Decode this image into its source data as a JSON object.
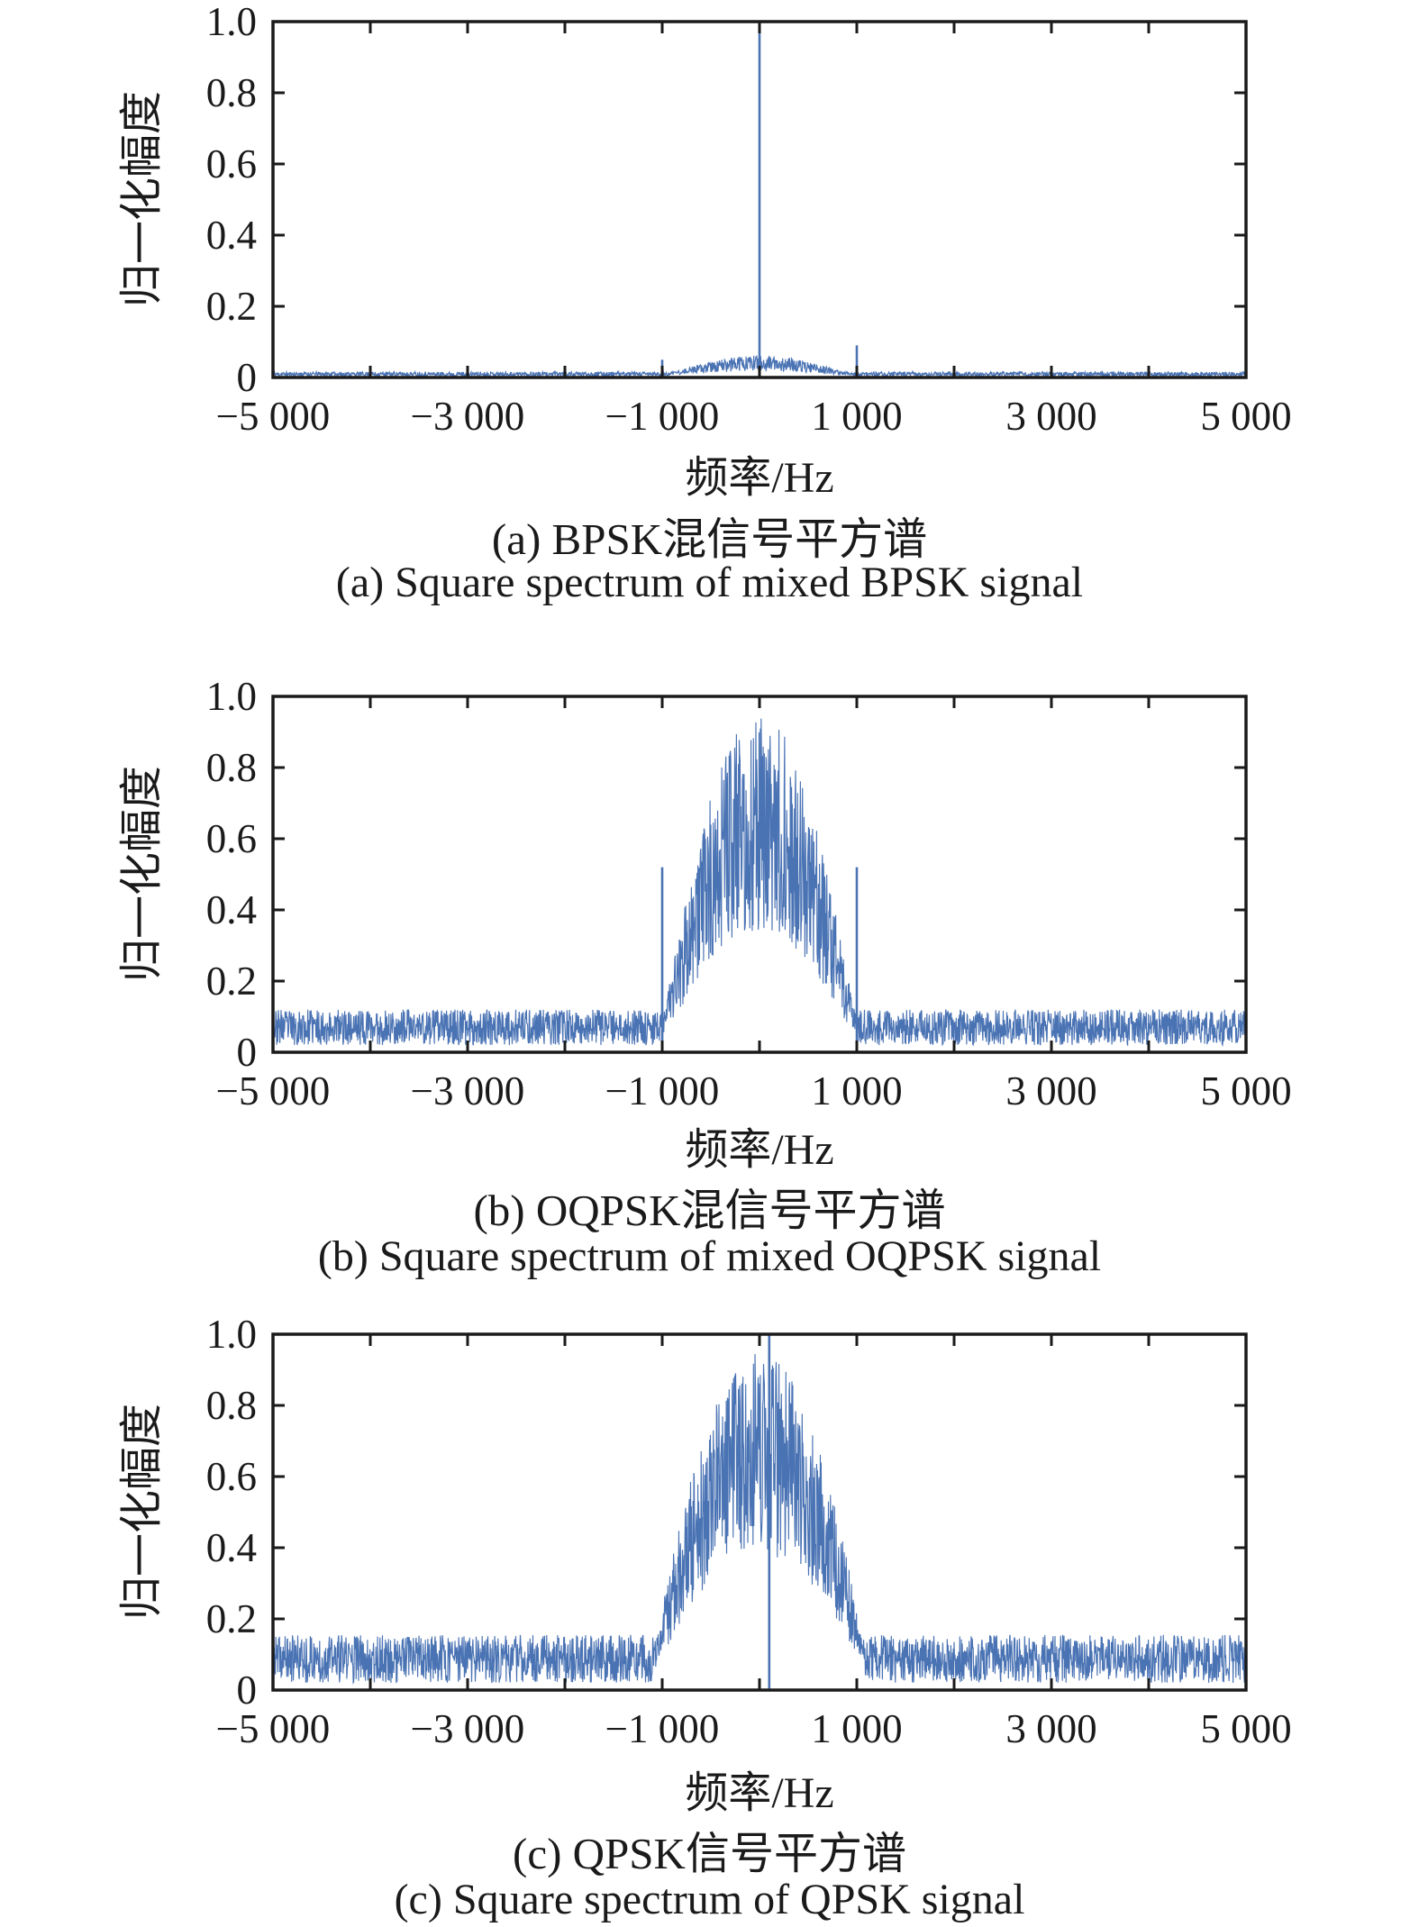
{
  "chart_data": [
    {
      "id": "a",
      "type": "line",
      "title_zh": "(a) BPSK混信号平方谱",
      "title_en": "(a) Square spectrum of mixed BPSK signal",
      "xlabel": "频率/Hz",
      "ylabel": "归一化幅度",
      "xlim": [
        -5000,
        5000
      ],
      "ylim": [
        0,
        1.0
      ],
      "x_major_ticks": [
        -5000,
        -3000,
        -1000,
        1000,
        3000,
        5000
      ],
      "x_tick_labels": [
        "−5 000",
        "−3 000",
        "−1 000",
        "1 000",
        "3 000",
        "5 000"
      ],
      "x_minor_ticks": [
        -4000,
        -2000,
        0,
        2000,
        4000
      ],
      "y_ticks": [
        0,
        0.2,
        0.4,
        0.6,
        0.8,
        1.0
      ],
      "y_tick_labels": [
        "0",
        "0.2",
        "0.4",
        "0.6",
        "0.8",
        "1.0"
      ],
      "grid": false,
      "legend": "none",
      "line_color": "#4a73b4",
      "axis_color": "#1a1a1a",
      "points": 2400,
      "seed": 11,
      "noise_floor": {
        "base": 0.003,
        "amplitude": 0.013
      },
      "main_lobe": {
        "from": -1100,
        "to": 1100,
        "peak": 0.062,
        "exponent": 1.2,
        "min_frac": 0.3,
        "max_frac": 1.0
      },
      "spikes": [
        {
          "x": 0,
          "y": 1.0
        },
        {
          "x": -1000,
          "y": 0.05
        },
        {
          "x": 1000,
          "y": 0.09
        }
      ]
    },
    {
      "id": "b",
      "type": "line",
      "title_zh": "(b) OQPSK混信号平方谱",
      "title_en": "(b) Square spectrum of mixed OQPSK signal",
      "xlabel": "频率/Hz",
      "ylabel": "归一化幅度",
      "xlim": [
        -5000,
        5000
      ],
      "ylim": [
        0,
        1.0
      ],
      "x_major_ticks": [
        -5000,
        -3000,
        -1000,
        1000,
        3000,
        5000
      ],
      "x_tick_labels": [
        "−5 000",
        "−3 000",
        "−1 000",
        "1 000",
        "3 000",
        "5 000"
      ],
      "x_minor_ticks": [
        -4000,
        -2000,
        0,
        2000,
        4000
      ],
      "y_ticks": [
        0,
        0.2,
        0.4,
        0.6,
        0.8,
        1.0
      ],
      "y_tick_labels": [
        "0",
        "0.2",
        "0.4",
        "0.6",
        "0.8",
        "1.0"
      ],
      "grid": false,
      "legend": "none",
      "line_color": "#4a73b4",
      "axis_color": "#1a1a1a",
      "points": 2400,
      "seed": 23,
      "noise_floor": {
        "base": 0.02,
        "amplitude": 0.1
      },
      "main_lobe": {
        "from": -1060,
        "to": 1060,
        "peak": 0.97,
        "exponent": 1.0,
        "min_frac": 0.35,
        "max_frac": 1.0
      },
      "spikes": [
        {
          "x": -1000,
          "y": 0.52
        },
        {
          "x": 1000,
          "y": 0.52
        }
      ]
    },
    {
      "id": "c",
      "type": "line",
      "title_zh": "(c) QPSK信号平方谱",
      "title_en": "(c) Square spectrum of QPSK signal",
      "xlabel": "频率/Hz",
      "ylabel": "归一化幅度",
      "xlim": [
        -5000,
        5000
      ],
      "ylim": [
        0,
        1.0
      ],
      "x_major_ticks": [
        -5000,
        -3000,
        -1000,
        1000,
        3000,
        5000
      ],
      "x_tick_labels": [
        "−5 000",
        "−3 000",
        "−1 000",
        "1 000",
        "3 000",
        "5 000"
      ],
      "x_minor_ticks": [
        -4000,
        -2000,
        0,
        2000,
        4000
      ],
      "y_ticks": [
        0,
        0.2,
        0.4,
        0.6,
        0.8,
        1.0
      ],
      "y_tick_labels": [
        "0",
        "0.2",
        "0.4",
        "0.6",
        "0.8",
        "1.0"
      ],
      "grid": false,
      "legend": "none",
      "line_color": "#4a73b4",
      "axis_color": "#1a1a1a",
      "points": 2400,
      "seed": 37,
      "noise_floor": {
        "base": 0.02,
        "amplitude": 0.135
      },
      "main_lobe": {
        "from": -1120,
        "to": 1120,
        "peak": 0.95,
        "exponent": 0.8,
        "min_frac": 0.4,
        "max_frac": 1.0
      },
      "spikes": [
        {
          "x": 100,
          "y": 1.0
        }
      ]
    }
  ]
}
